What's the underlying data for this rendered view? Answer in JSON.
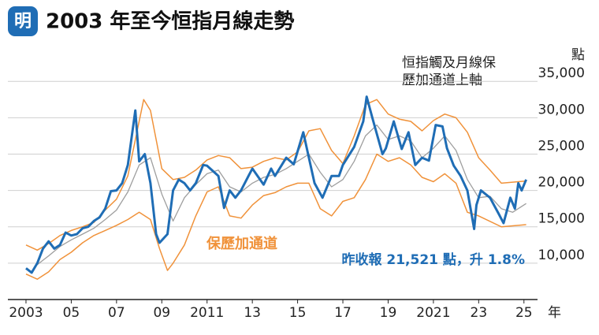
{
  "chart_data": {
    "type": "line",
    "logo": "明",
    "title": "2003 年至今恒指月線走勢",
    "y_unit": "點",
    "x_unit": "年",
    "annotation_upper": [
      "恒指觸及月線保",
      "歷加通道上軸"
    ],
    "annotation_band": "保歷加通道",
    "annotation_close": "昨收報 21,521 點，升 1.8%",
    "xlim": [
      2002.2,
      2025.6
    ],
    "xticks": [
      {
        "value": 2003,
        "label": "2003"
      },
      {
        "value": 2005,
        "label": "05"
      },
      {
        "value": 2007,
        "label": "07"
      },
      {
        "value": 2009,
        "label": "09"
      },
      {
        "value": 2011,
        "label": "2011"
      },
      {
        "value": 2013,
        "label": "13"
      },
      {
        "value": 2015,
        "label": "15"
      },
      {
        "value": 2017,
        "label": "17"
      },
      {
        "value": 2019,
        "label": "19"
      },
      {
        "value": 2021,
        "label": "2021"
      },
      {
        "value": 2023,
        "label": "23"
      },
      {
        "value": 2025,
        "label": "25"
      }
    ],
    "ylim": [
      5000,
      36000
    ],
    "yticks": [
      {
        "value": 10000,
        "label": "10,000"
      },
      {
        "value": 15000,
        "label": "15,000"
      },
      {
        "value": 20000,
        "label": "20,000"
      },
      {
        "value": 25000,
        "label": "25,000"
      },
      {
        "value": 30000,
        "label": "30,000"
      },
      {
        "value": 35000,
        "label": "35,000"
      }
    ],
    "grid": true,
    "series": [
      {
        "color": "#9e9e9e",
        "width": 1.3,
        "x": [
          2003.5,
          2004,
          2004.5,
          2005,
          2005.5,
          2006,
          2006.5,
          2007,
          2007.5,
          2008,
          2008.5,
          2009,
          2009.5,
          2010,
          2010.5,
          2011,
          2011.5,
          2012,
          2012.5,
          2013,
          2013.5,
          2014,
          2014.5,
          2015,
          2015.5,
          2016,
          2016.5,
          2017,
          2017.5,
          2018,
          2018.5,
          2019,
          2019.5,
          2020,
          2020.5,
          2021,
          2021.5,
          2022,
          2022.5,
          2023,
          2023.5,
          2024,
          2024.5,
          2025.1
        ],
        "values": [
          9800,
          11000,
          12300,
          13200,
          14000,
          14800,
          16000,
          17300,
          19800,
          23500,
          24500,
          19500,
          15800,
          19000,
          20800,
          22300,
          22800,
          20500,
          19800,
          21000,
          21800,
          22200,
          23000,
          24000,
          25000,
          22500,
          20500,
          21500,
          24000,
          27500,
          29000,
          27000,
          27500,
          26800,
          24500,
          25800,
          27500,
          25500,
          21500,
          19000,
          19200,
          17500,
          17000,
          18200
        ]
      },
      {
        "color": "#f0923a",
        "width": 1.5,
        "x": [
          2003.0,
          2003.5,
          2004,
          2004.5,
          2005,
          2005.5,
          2006,
          2006.5,
          2007,
          2007.5,
          2008.2,
          2008.5,
          2009,
          2009.5,
          2010,
          2010.5,
          2011,
          2011.5,
          2012,
          2012.5,
          2013,
          2013.5,
          2014,
          2014.5,
          2015,
          2015.5,
          2016,
          2016.5,
          2017,
          2017.5,
          2018,
          2018.5,
          2019,
          2019.5,
          2020,
          2020.5,
          2021,
          2021.5,
          2022,
          2022.5,
          2023,
          2023.5,
          2024,
          2025.1
        ],
        "values": [
          12500,
          11800,
          12700,
          13800,
          14500,
          15000,
          15600,
          17300,
          18800,
          22000,
          32500,
          31000,
          23000,
          21500,
          21800,
          22800,
          24200,
          24800,
          24500,
          23000,
          23200,
          24000,
          24500,
          24200,
          25300,
          28200,
          28500,
          25500,
          23700,
          27500,
          31800,
          32500,
          30500,
          29800,
          29500,
          28200,
          29600,
          30500,
          30000,
          28000,
          24500,
          22800,
          21000,
          21300
        ]
      },
      {
        "color": "#f0923a",
        "width": 1.5,
        "x": [
          2003.0,
          2003.5,
          2004,
          2004.5,
          2005,
          2005.5,
          2006,
          2006.5,
          2007,
          2007.5,
          2008,
          2008.5,
          2008.9,
          2009.25,
          2009.5,
          2010,
          2010.5,
          2011,
          2011.5,
          2012,
          2012.5,
          2013,
          2013.5,
          2014,
          2014.5,
          2015,
          2015.5,
          2016,
          2016.5,
          2017,
          2017.5,
          2018,
          2018.5,
          2019,
          2019.5,
          2020,
          2020.5,
          2021,
          2021.5,
          2022,
          2022.5,
          2023,
          2024,
          2025.1
        ],
        "values": [
          8500,
          7800,
          8800,
          10500,
          11500,
          12800,
          13800,
          14500,
          15200,
          16000,
          17000,
          16000,
          12000,
          9000,
          10000,
          12500,
          16500,
          19800,
          20500,
          16500,
          16200,
          18000,
          19300,
          19700,
          20500,
          21000,
          21000,
          17500,
          16500,
          18500,
          19000,
          21500,
          25000,
          24000,
          24500,
          23500,
          21800,
          21200,
          22300,
          21000,
          17000,
          16500,
          15000,
          15300
        ]
      },
      {
        "color": "#1f6db5",
        "width": 3,
        "x": [
          2003.0,
          2003.25,
          2003.5,
          2003.75,
          2004.0,
          2004.25,
          2004.5,
          2004.75,
          2005.0,
          2005.25,
          2005.5,
          2005.75,
          2006.0,
          2006.25,
          2006.5,
          2006.75,
          2007.0,
          2007.25,
          2007.5,
          2007.83,
          2008.0,
          2008.25,
          2008.5,
          2008.75,
          2008.9,
          2009.25,
          2009.5,
          2009.75,
          2010.0,
          2010.25,
          2010.5,
          2010.83,
          2011.0,
          2011.5,
          2011.75,
          2012.0,
          2012.25,
          2012.5,
          2012.83,
          2013.0,
          2013.5,
          2013.83,
          2014.0,
          2014.5,
          2014.83,
          2015.25,
          2015.5,
          2015.75,
          2016.1,
          2016.5,
          2016.83,
          2017.0,
          2017.5,
          2017.9,
          2018.05,
          2018.3,
          2018.75,
          2018.9,
          2019.25,
          2019.6,
          2019.9,
          2020.2,
          2020.5,
          2020.8,
          2021.1,
          2021.4,
          2021.6,
          2021.9,
          2022.2,
          2022.5,
          2022.8,
          2022.9,
          2023.1,
          2023.5,
          2023.9,
          2024.1,
          2024.4,
          2024.6,
          2024.75,
          2024.9,
          2025.1
        ],
        "values": [
          9300,
          8700,
          10000,
          12000,
          13000,
          12000,
          12500,
          14200,
          13800,
          14000,
          14800,
          15000,
          15800,
          16300,
          17500,
          19900,
          20000,
          21000,
          23500,
          31000,
          24000,
          25000,
          21000,
          14000,
          12800,
          14000,
          20000,
          21500,
          21000,
          20000,
          21000,
          23500,
          23400,
          22000,
          17600,
          20000,
          19000,
          20000,
          22000,
          23000,
          20800,
          23000,
          22000,
          24500,
          23600,
          28000,
          24500,
          21000,
          19000,
          22000,
          22000,
          23500,
          26000,
          29500,
          32900,
          30000,
          25000,
          25800,
          29500,
          25700,
          28000,
          23500,
          24500,
          24100,
          29000,
          28800,
          25800,
          23400,
          22000,
          20000,
          14700,
          18000,
          20000,
          19000,
          16700,
          15500,
          19000,
          17500,
          21000,
          20000,
          21500
        ]
      }
    ]
  }
}
